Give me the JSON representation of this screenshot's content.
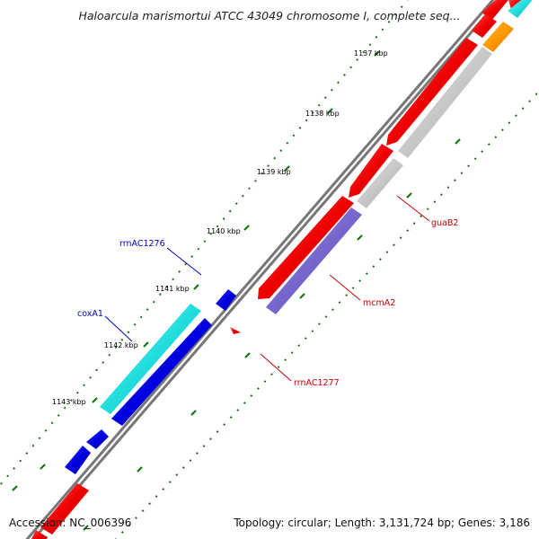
{
  "title": "Haloarcula marismortui ATCC 43049 chromosome I, complete seq...",
  "footer": {
    "accession": "Accession: NC_006396",
    "summary": "Topology: circular; Length: 3,131,724 bp; Genes: 3,186"
  },
  "ticks": [
    "1137 kbp",
    "1138 kbp",
    "1139 kbp",
    "1140 kbp",
    "1141 kbp",
    "1142 kbp",
    "1143 kbp"
  ],
  "labels": [
    {
      "name": "guaB2",
      "color": "#cc0000"
    },
    {
      "name": "mcmA2",
      "color": "#cc0000"
    },
    {
      "name": "rrnAC1277",
      "color": "#cc0000"
    },
    {
      "name": "rrnAC1276",
      "color": "#0000cc"
    },
    {
      "name": "coxA1",
      "color": "#0000cc"
    }
  ],
  "colors": {
    "forward": "#ee0000",
    "reverse": "#0000ee",
    "cyan": "#22dddd",
    "grey": "#c8c8c8",
    "purple": "#7766cc",
    "orange": "#ff9900",
    "backbone": "#777777",
    "dots": "#117711"
  }
}
